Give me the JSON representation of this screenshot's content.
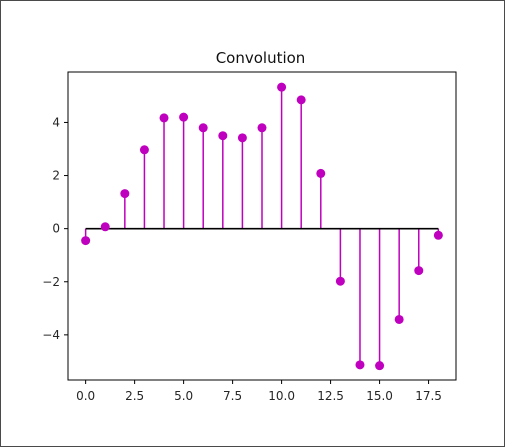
{
  "chart_data": {
    "type": "stem",
    "title": "Convolution",
    "xlabel": "",
    "ylabel": "",
    "x": [
      0,
      1,
      2,
      3,
      4,
      5,
      6,
      7,
      8,
      9,
      10,
      11,
      12,
      13,
      14,
      15,
      16,
      17,
      18
    ],
    "y": [
      -0.45,
      0.07,
      1.32,
      2.97,
      4.17,
      4.2,
      3.8,
      3.5,
      3.42,
      3.8,
      5.33,
      4.85,
      2.08,
      -1.98,
      -5.13,
      -5.16,
      -3.42,
      -1.58,
      -0.25
    ],
    "xlim": [
      -0.9,
      18.9
    ],
    "ylim": [
      -5.7,
      5.9
    ],
    "xticks": [
      "0.0",
      "2.5",
      "5.0",
      "7.5",
      "10.0",
      "12.5",
      "15.0",
      "17.5"
    ],
    "xtick_values": [
      0,
      2.5,
      5,
      7.5,
      10,
      12.5,
      15,
      17.5
    ],
    "yticks": [
      "−4",
      "−2",
      "0",
      "2",
      "4"
    ],
    "ytick_values": [
      -4,
      -2,
      0,
      2,
      4
    ],
    "stem_color": "#bf00bf",
    "baseline_color": "#000000",
    "grid": false,
    "legend": "none"
  }
}
